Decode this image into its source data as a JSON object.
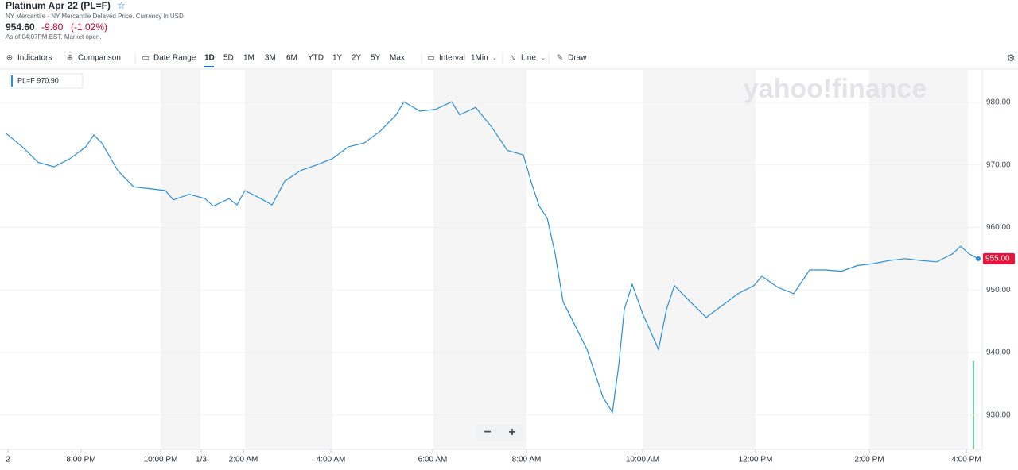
{
  "header": {
    "title": "Platinum Apr 22 (PL=F)",
    "subtitle": "NY Mercantile - NY Mercantile Delayed Price. Currency in USD",
    "price": "954.60",
    "change": "-9.80",
    "change_percent": "(-1.02%)",
    "as_of": "As of 04:07PM EST. Market open."
  },
  "toolbar": {
    "items": [
      "Indicators",
      "Comparison",
      "Date Range",
      "1D",
      "5D",
      "1M",
      "3M",
      "6M",
      "YTD",
      "1Y",
      "2Y",
      "5Y",
      "Max",
      "Interval",
      "1Min",
      "Line",
      "Draw"
    ]
  },
  "watermark": "yahoo!finance",
  "chart_data": {
    "type": "line",
    "legend_label": "PL=F 970.90",
    "last_value": 955,
    "last_label": "955.00",
    "x": [
      0,
      20,
      40,
      60,
      80,
      100,
      110,
      120,
      140,
      160,
      180,
      200,
      210,
      230,
      250,
      260,
      280,
      290,
      300,
      320,
      334,
      350,
      370,
      390,
      410,
      430,
      450,
      470,
      490,
      500,
      520,
      540,
      560,
      570,
      590,
      610,
      630,
      650,
      660,
      670,
      680,
      690,
      700,
      710,
      730,
      740,
      750,
      762,
      770,
      777,
      787,
      800,
      820,
      830,
      840,
      860,
      880,
      900,
      920,
      940,
      950,
      970,
      990,
      1010,
      1030,
      1050,
      1070,
      1090,
      1110,
      1130,
      1150,
      1170,
      1190,
      1200,
      1210,
      1222
    ],
    "series": [
      {
        "name": "PL=F",
        "color": "#2a8fd6",
        "values": [
          975,
          972.9,
          970.4,
          969.7,
          971,
          972.9,
          974.8,
          973.5,
          969.1,
          966.5,
          966.2,
          965.9,
          964.4,
          965.3,
          964.6,
          963.4,
          964.6,
          963.6,
          965.9,
          964.6,
          963.6,
          967.4,
          969.1,
          970,
          971,
          972.9,
          973.5,
          975.4,
          978,
          980.1,
          978.6,
          978.9,
          980.1,
          978,
          979.2,
          976.1,
          972.3,
          971.6,
          967.2,
          963.4,
          961.5,
          955.8,
          948.1,
          945.6,
          940.5,
          936.7,
          932.9,
          930.4,
          938,
          946.9,
          950.9,
          946.2,
          940.5,
          946.9,
          950.7,
          948.1,
          945.6,
          947.5,
          949.4,
          950.7,
          952.2,
          950.4,
          949.4,
          953.2,
          953.2,
          953,
          953.9,
          954.2,
          954.7,
          955,
          954.7,
          954.5,
          955.8,
          957,
          955.8,
          955
        ]
      }
    ],
    "xlim": [
      0,
      1227
    ],
    "xticks": [
      {
        "value": 2,
        "label": "2"
      },
      {
        "value": 94,
        "label": "8:00 PM"
      },
      {
        "value": 194,
        "label": "10:00 PM"
      },
      {
        "value": 245,
        "label": "1/3"
      },
      {
        "value": 298,
        "label": "2:00 AM"
      },
      {
        "value": 408,
        "label": "4:00 AM"
      },
      {
        "value": 536,
        "label": "6:00 AM"
      },
      {
        "value": 654,
        "label": "8:00 AM"
      },
      {
        "value": 800,
        "label": "10:00 AM"
      },
      {
        "value": 942,
        "label": "12:00 PM"
      },
      {
        "value": 1085,
        "label": "2:00 PM"
      },
      {
        "value": 1207,
        "label": "4:00 PM"
      }
    ],
    "ylim": [
      924.5,
      985.2
    ],
    "yticks": [
      {
        "value": 930,
        "label": "930.00"
      },
      {
        "value": 940,
        "label": "940.00"
      },
      {
        "value": 950,
        "label": "950.00"
      },
      {
        "value": 960,
        "label": "960.00"
      },
      {
        "value": 970,
        "label": "970.00"
      },
      {
        "value": 980,
        "label": "980.00"
      }
    ],
    "grid": true
  }
}
